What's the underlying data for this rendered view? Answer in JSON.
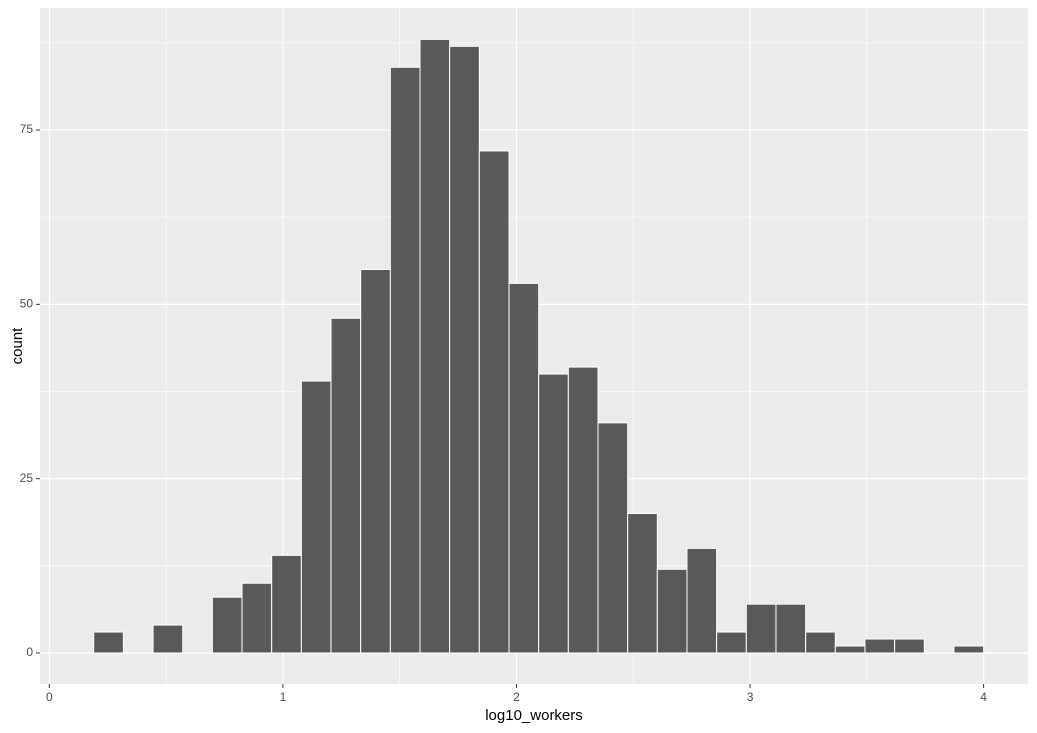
{
  "chart_data": {
    "type": "histogram",
    "x_label": "log10_workers",
    "y_label": "count",
    "bins": [
      0.19,
      0.317,
      0.444,
      0.571,
      0.698,
      0.825,
      0.952,
      1.079,
      1.206,
      1.333,
      1.46,
      1.587,
      1.714,
      1.841,
      1.968,
      2.095,
      2.222,
      2.349,
      2.476,
      2.603,
      2.73,
      2.857,
      2.984,
      3.111,
      3.238,
      3.365,
      3.492,
      3.619,
      3.746,
      3.873,
      4.0
    ],
    "values": [
      3,
      0,
      4,
      0,
      8,
      10,
      14,
      39,
      48,
      55,
      84,
      88,
      87,
      72,
      53,
      40,
      41,
      33,
      20,
      12,
      15,
      3,
      7,
      7,
      3,
      1,
      2,
      2,
      0,
      1
    ],
    "color": "#595959",
    "xlim": [
      -0.04,
      4.19
    ],
    "xticks": [
      0,
      1,
      2,
      3,
      4
    ],
    "ylim": [
      -4.45,
      92.5
    ],
    "yticks": [
      0,
      25,
      50,
      75
    ],
    "grid": true
  }
}
